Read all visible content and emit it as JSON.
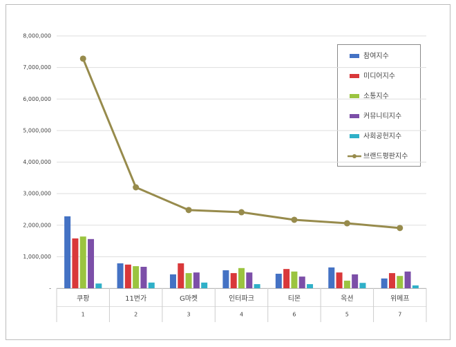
{
  "chart_data": {
    "type": "bar-line",
    "categories": [
      "쿠팡",
      "11번가",
      "G마켓",
      "인터파크",
      "티몬",
      "옥션",
      "위메프"
    ],
    "category_ranks": [
      1,
      2,
      3,
      4,
      6,
      5,
      7
    ],
    "series": [
      {
        "name": "참여지수",
        "type": "bar",
        "color": "#4472c4",
        "values": [
          2280000,
          790000,
          440000,
          570000,
          460000,
          660000,
          310000
        ]
      },
      {
        "name": "미디어지수",
        "type": "bar",
        "color": "#d9383a",
        "values": [
          1580000,
          750000,
          790000,
          480000,
          610000,
          500000,
          480000
        ]
      },
      {
        "name": "소통지수",
        "type": "bar",
        "color": "#9bc440",
        "values": [
          1640000,
          700000,
          480000,
          640000,
          530000,
          240000,
          390000
        ]
      },
      {
        "name": "커뮤니티지수",
        "type": "bar",
        "color": "#7c4fa8",
        "values": [
          1560000,
          680000,
          500000,
          500000,
          370000,
          440000,
          530000
        ]
      },
      {
        "name": "사회공헌지수",
        "type": "bar",
        "color": "#2fb0c8",
        "values": [
          150000,
          180000,
          180000,
          130000,
          130000,
          170000,
          90000
        ]
      },
      {
        "name": "브랜드평판지수",
        "type": "line",
        "color": "#978b4c",
        "values": [
          7280000,
          3200000,
          2480000,
          2410000,
          2170000,
          2060000,
          1910000
        ]
      }
    ],
    "ylim": [
      0,
      8000000
    ],
    "yticks": [
      {
        "value": 0,
        "label": "-"
      },
      {
        "value": 1000000,
        "label": "1,000,000"
      },
      {
        "value": 2000000,
        "label": "2,000,000"
      },
      {
        "value": 3000000,
        "label": "3,000,000"
      },
      {
        "value": 4000000,
        "label": "4,000,000"
      },
      {
        "value": 5000000,
        "label": "5,000,000"
      },
      {
        "value": 6000000,
        "label": "6,000,000"
      },
      {
        "value": 7000000,
        "label": "7,000,000"
      },
      {
        "value": 8000000,
        "label": "8,000,000"
      }
    ],
    "grid": true
  }
}
